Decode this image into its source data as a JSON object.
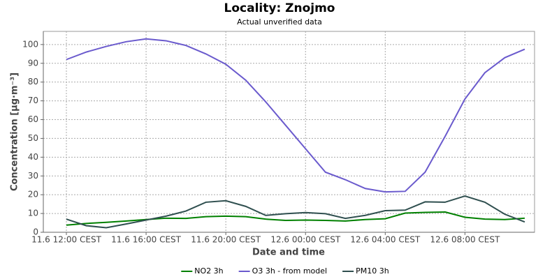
{
  "chart_data": {
    "type": "line",
    "title": "Locality: Znojmo",
    "subtitle": "Actual unverified data",
    "x_label": "Date and time",
    "y_label": "Concentration [µg·m⁻³]",
    "categories": [
      "11.6 12:00 CEST",
      null,
      null,
      null,
      "11.6 16:00 CEST",
      null,
      null,
      null,
      "11.6 20:00 CEST",
      null,
      null,
      null,
      "12.6 00:00 CEST",
      null,
      null,
      null,
      "12.6 04:00 CEST",
      null,
      null,
      null,
      "12.6 08:00 CEST",
      null,
      null,
      null
    ],
    "series": [
      {
        "name": "NO2 3h",
        "color": "#008000",
        "values": [
          3.8,
          4.7,
          5.3,
          6,
          6.8,
          7.5,
          7.4,
          8.3,
          8.6,
          8.3,
          7,
          6.3,
          6.5,
          6.3,
          6,
          6.8,
          7.2,
          10.2,
          10.6,
          10.8,
          8,
          7,
          6.8,
          7.5
        ]
      },
      {
        "name": "O3 3h - from model",
        "color": "#6a5acd",
        "values": [
          92,
          96,
          99,
          101.5,
          103,
          102,
          99.5,
          95,
          89.5,
          81,
          69.5,
          57,
          44.5,
          32,
          28,
          23.3,
          21.5,
          21.8,
          32,
          51,
          71,
          85,
          93,
          97.5
        ]
      },
      {
        "name": "PM10 3h",
        "color": "#2f4f4f",
        "values": [
          7,
          3.5,
          2.4,
          4.4,
          6.5,
          8.6,
          11.3,
          16,
          16.8,
          13.8,
          9,
          9.9,
          10.5,
          9.9,
          7.4,
          9,
          11.5,
          11.8,
          16.2,
          16,
          19.3,
          16,
          9.6,
          5.5
        ]
      }
    ],
    "ylim": [
      0,
      107
    ],
    "yticks": [
      0,
      10,
      20,
      30,
      40,
      50,
      60,
      70,
      80,
      90,
      100
    ],
    "grid": true,
    "legend": "bottom"
  }
}
